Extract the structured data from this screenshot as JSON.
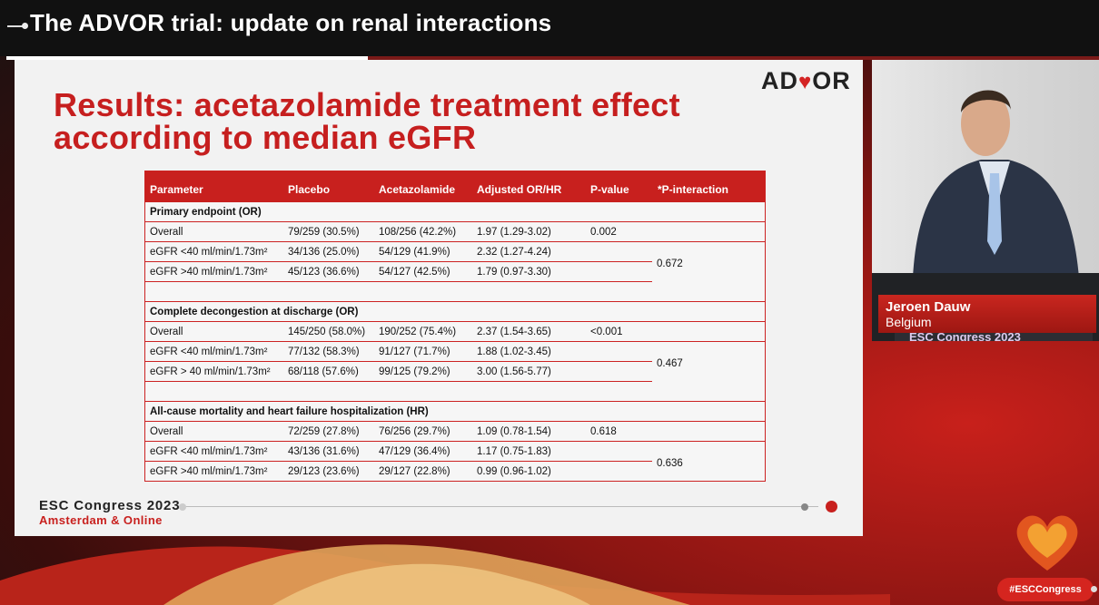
{
  "header": {
    "title": "The ADVOR trial: update on renal interactions"
  },
  "slide": {
    "title": "Results: acetazolamide treatment effect according to median eGFR",
    "logo_text": "ADVOR",
    "table": {
      "columns": [
        "Parameter",
        "Placebo",
        "Acetazolamide",
        "Adjusted OR/HR",
        "P-value",
        "*P-interaction"
      ],
      "sections": [
        {
          "heading": "Primary endpoint (OR)",
          "interaction": "0.672",
          "rows": [
            [
              "Overall",
              "79/259 (30.5%)",
              "108/256 (42.2%)",
              "1.97 (1.29-3.02)",
              "0.002"
            ],
            [
              "eGFR <40 ml/min/1.73m²",
              "34/136 (25.0%)",
              "54/129 (41.9%)",
              "2.32 (1.27-4.24)",
              ""
            ],
            [
              "eGFR >40 ml/min/1.73m²",
              "45/123 (36.6%)",
              "54/127 (42.5%)",
              "1.79 (0.97-3.30)",
              ""
            ]
          ]
        },
        {
          "heading": "Complete decongestion at discharge (OR)",
          "interaction": "0.467",
          "rows": [
            [
              "Overall",
              "145/250 (58.0%)",
              "190/252 (75.4%)",
              "2.37 (1.54-3.65)",
              "<0.001"
            ],
            [
              "eGFR <40 ml/min/1.73m²",
              "77/132 (58.3%)",
              "91/127 (71.7%)",
              "1.88 (1.02-3.45)",
              ""
            ],
            [
              "eGFR > 40 ml/min/1.73m²",
              "68/118 (57.6%)",
              "99/125 (79.2%)",
              "3.00 (1.56-5.77)",
              ""
            ]
          ]
        },
        {
          "heading": "All-cause mortality and heart failure hospitalization (HR)",
          "interaction": "0.636",
          "rows": [
            [
              "Overall",
              "72/259 (27.8%)",
              "76/256 (29.7%)",
              "1.09 (0.78-1.54)",
              "0.618"
            ],
            [
              "eGFR <40 ml/min/1.73m²",
              "43/136 (31.6%)",
              "47/129 (36.4%)",
              "1.17 (0.75-1.83)",
              ""
            ],
            [
              "eGFR >40 ml/min/1.73m²",
              "29/123 (23.6%)",
              "29/127 (22.8%)",
              "0.99 (0.96-1.02)",
              ""
            ]
          ]
        }
      ]
    },
    "footer": {
      "line1": "ESC Congress 2023",
      "line2": "Amsterdam & Online"
    }
  },
  "speaker": {
    "name": "Jeroen Dauw",
    "country": "Belgium",
    "band_text": "ESC Congress 2023"
  },
  "hashtag": "#ESCCongress",
  "colors": {
    "accent": "#c8201e",
    "slide_bg": "#f2f2f2",
    "title_red": "#c61f1f"
  }
}
